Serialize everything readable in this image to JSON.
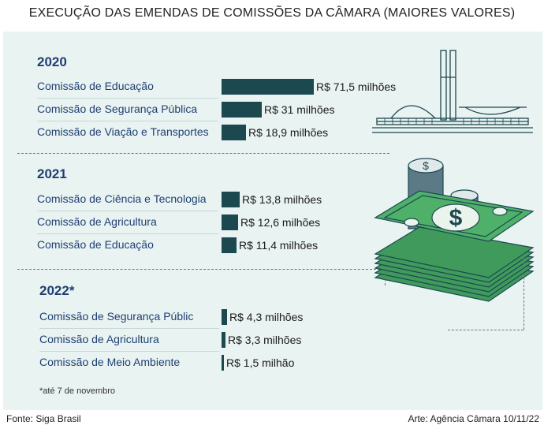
{
  "title": "EXECUÇÃO DAS EMENDAS DE COMISSÕES DA CÂMARA (MAIORES VALORES)",
  "footnote": "*até 7 de novembro",
  "source": "Fonte: Siga Brasil",
  "credit": "Arte: Agência Câmara 10/11/22",
  "colors": {
    "bar": "#1c4850",
    "text": "#1f3f73",
    "panel": "#e9f3f1",
    "money": "#3f9a5c"
  },
  "chart_data": {
    "type": "bar",
    "orientation": "horizontal",
    "unit": "R$ milhões",
    "groups": [
      {
        "year": "2020",
        "items": [
          {
            "category": "Comissão de Educação",
            "value": 71.5,
            "label": "R$ 71,5 milhões"
          },
          {
            "category": "Comissão de Segurança Pública",
            "value": 31,
            "label": "R$ 31 milhões"
          },
          {
            "category": "Comissão de Viação e Transportes",
            "value": 18.9,
            "label": "R$ 18,9 milhões"
          }
        ]
      },
      {
        "year": "2021",
        "items": [
          {
            "category": "Comissão de Ciência e Tecnologia",
            "value": 13.8,
            "label": "R$ 13,8 milhões"
          },
          {
            "category": "Comissão de Agricultura",
            "value": 12.6,
            "label": "R$ 12,6 milhões"
          },
          {
            "category": "Comissão de Educação",
            "value": 11.4,
            "label": "R$ 11,4 milhões"
          }
        ]
      },
      {
        "year": "2022*",
        "items": [
          {
            "category": "Comissão de Segurança Públic",
            "value": 4.3,
            "label": "R$ 4,3 milhões"
          },
          {
            "category": "Comissão de Agricultura",
            "value": 3.3,
            "label": "R$ 3,3 milhões"
          },
          {
            "category": "Comissão de Meio Ambiente",
            "value": 1.5,
            "label": "R$ 1,5 milhão"
          }
        ]
      }
    ]
  }
}
